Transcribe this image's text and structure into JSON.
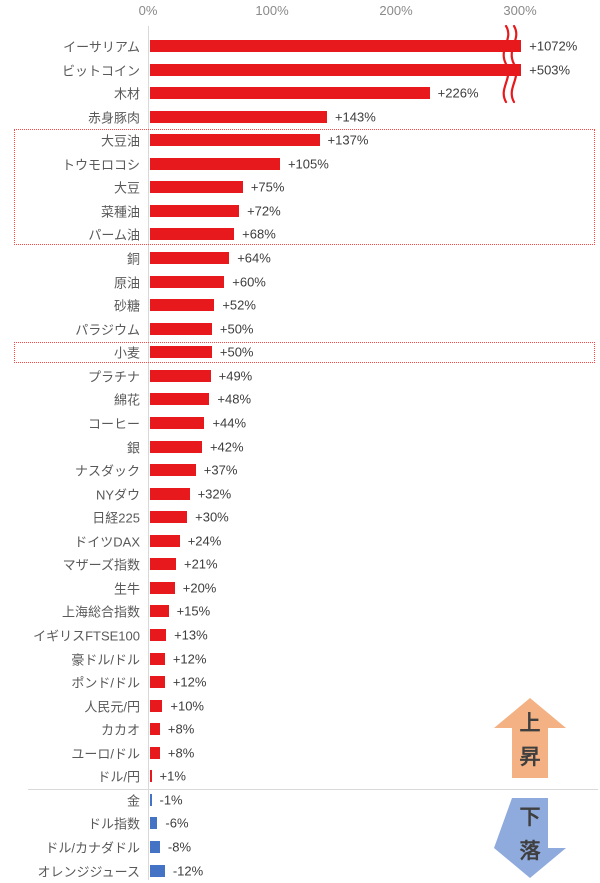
{
  "colors": {
    "bar_positive": "#e8191d",
    "bar_negative": "#4472c4",
    "axis_label": "#8a8a8a",
    "category_label": "#595959",
    "value_label": "#3d3d3d",
    "highlight_border": "#ff4444",
    "axis_line": "#d9d9d9",
    "up_arrow_fill": "#f4b183",
    "down_arrow_fill": "#8faadc",
    "arrow_text": "#3f3f3f"
  },
  "chart_data": {
    "type": "bar",
    "orientation": "horizontal",
    "title": "",
    "xlabel": "",
    "ylabel": "",
    "xlim": [
      0,
      300
    ],
    "axis_ticks": [
      "0%",
      "100%",
      "200%",
      "300%"
    ],
    "grid": false,
    "value_unit": "%",
    "items": [
      {
        "label": "イーサリアム",
        "value": 1072,
        "display": "+1072%"
      },
      {
        "label": "ビットコイン",
        "value": 503,
        "display": "+503%"
      },
      {
        "label": "木材",
        "value": 226,
        "display": "+226%"
      },
      {
        "label": "赤身豚肉",
        "value": 143,
        "display": "+143%"
      },
      {
        "label": "大豆油",
        "value": 137,
        "display": "+137%"
      },
      {
        "label": "トウモロコシ",
        "value": 105,
        "display": "+105%"
      },
      {
        "label": "大豆",
        "value": 75,
        "display": "+75%"
      },
      {
        "label": "菜種油",
        "value": 72,
        "display": "+72%"
      },
      {
        "label": "パーム油",
        "value": 68,
        "display": "+68%"
      },
      {
        "label": "銅",
        "value": 64,
        "display": "+64%"
      },
      {
        "label": "原油",
        "value": 60,
        "display": "+60%"
      },
      {
        "label": "砂糖",
        "value": 52,
        "display": "+52%"
      },
      {
        "label": "パラジウム",
        "value": 50,
        "display": "+50%"
      },
      {
        "label": "小麦",
        "value": 50,
        "display": "+50%"
      },
      {
        "label": "プラチナ",
        "value": 49,
        "display": "+49%"
      },
      {
        "label": "綿花",
        "value": 48,
        "display": "+48%"
      },
      {
        "label": "コーヒー",
        "value": 44,
        "display": "+44%"
      },
      {
        "label": "銀",
        "value": 42,
        "display": "+42%"
      },
      {
        "label": "ナスダック",
        "value": 37,
        "display": "+37%"
      },
      {
        "label": "NYダウ",
        "value": 32,
        "display": "+32%"
      },
      {
        "label": "日経225",
        "value": 30,
        "display": "+30%"
      },
      {
        "label": "ドイツDAX",
        "value": 24,
        "display": "+24%"
      },
      {
        "label": "マザーズ指数",
        "value": 21,
        "display": "+21%"
      },
      {
        "label": "生牛",
        "value": 20,
        "display": "+20%"
      },
      {
        "label": "上海総合指数",
        "value": 15,
        "display": "+15%"
      },
      {
        "label": "イギリスFTSE100",
        "value": 13,
        "display": "+13%"
      },
      {
        "label": "豪ドル/ドル",
        "value": 12,
        "display": "+12%"
      },
      {
        "label": "ポンド/ドル",
        "value": 12,
        "display": "+12%"
      },
      {
        "label": "人民元/円",
        "value": 10,
        "display": "+10%"
      },
      {
        "label": "カカオ",
        "value": 8,
        "display": "+8%"
      },
      {
        "label": "ユーロ/ドル",
        "value": 8,
        "display": "+8%"
      },
      {
        "label": "ドル/円",
        "value": 1,
        "display": "+1%"
      },
      {
        "label": "金",
        "value": -1,
        "display": "-1%"
      },
      {
        "label": "ドル指数",
        "value": -6,
        "display": "-6%"
      },
      {
        "label": "ドル/カナダドル",
        "value": -8,
        "display": "-8%"
      },
      {
        "label": "オレンジジュース",
        "value": -12,
        "display": "-12%"
      }
    ],
    "broken_axis_bars": [
      "イーサリアム",
      "ビットコイン"
    ],
    "highlight_groups": [
      {
        "from": "大豆油",
        "to": "パーム油"
      },
      {
        "from": "小麦",
        "to": "小麦"
      }
    ],
    "divider_between": [
      "ドル/円",
      "金"
    ]
  },
  "annotations": {
    "up": {
      "line1": "上",
      "line2": "昇"
    },
    "down": {
      "line1": "下",
      "line2": "落"
    }
  }
}
